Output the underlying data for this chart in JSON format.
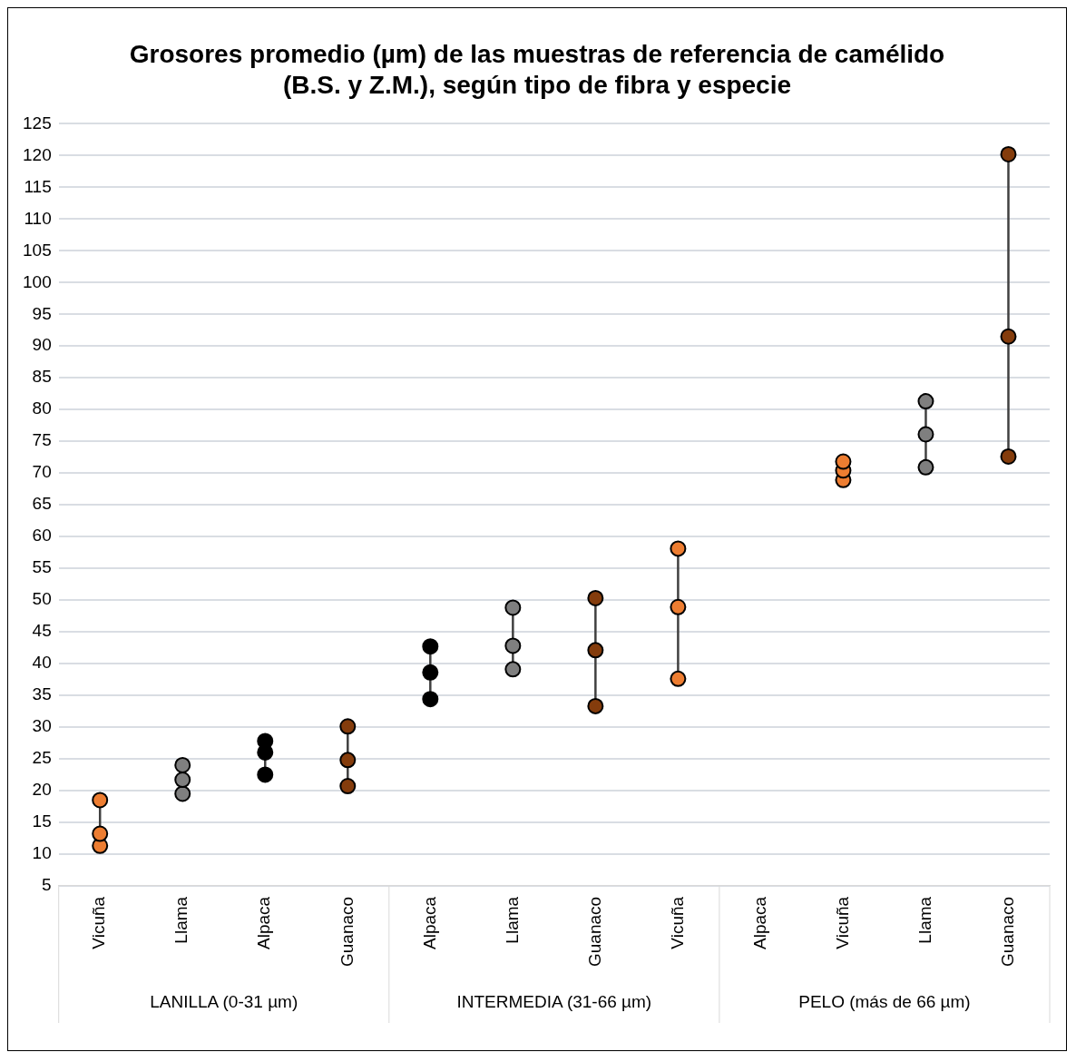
{
  "chart_data": {
    "type": "scatter",
    "title": "Grosores promedio (µm) de las muestras de referencia de camélido (B.S. y Z.M.), según tipo de fibra y especie",
    "categories": [
      "Vicuña",
      "Llama",
      "Alpaca",
      "Guanaco",
      "Alpaca",
      "Llama",
      "Guanaco",
      "Vicuña",
      "Alpaca",
      "Vicuña",
      "Llama",
      "Guanaco"
    ],
    "series": [
      {
        "values": [
          18.5,
          24,
          27.8,
          30.1,
          42.7,
          48.8,
          50.3,
          58.1,
          null,
          71.8,
          81.3,
          120.2
        ],
        "colors": [
          "#ed7d31",
          "#7f7f7f",
          "#000000",
          "#843c0c",
          "#000000",
          "#7f7f7f",
          "#843c0c",
          "#ed7d31",
          "#000000",
          "#ed7d31",
          "#7f7f7f",
          "#843c0c"
        ]
      },
      {
        "values": [
          13.2,
          21.7,
          26,
          24.8,
          38.6,
          42.8,
          42.1,
          48.9,
          null,
          70.4,
          76.1,
          91.5
        ],
        "colors": [
          "#ed7d31",
          "#7f7f7f",
          "#000000",
          "#843c0c",
          "#000000",
          "#7f7f7f",
          "#843c0c",
          "#ed7d31",
          "#000000",
          "#ed7d31",
          "#7f7f7f",
          "#843c0c"
        ]
      },
      {
        "values": [
          11.3,
          19.5,
          22.5,
          20.7,
          34.4,
          39.1,
          33.3,
          37.6,
          null,
          68.9,
          70.9,
          72.6
        ],
        "colors": [
          "#ed7d31",
          "#7f7f7f",
          "#000000",
          "#843c0c",
          "#000000",
          "#7f7f7f",
          "#843c0c",
          "#ed7d31",
          "#000000",
          "#ed7d31",
          "#7f7f7f",
          "#843c0c"
        ]
      }
    ],
    "ylim": [
      5,
      125
    ],
    "yticks": [
      5,
      10,
      15,
      20,
      25,
      30,
      35,
      40,
      45,
      50,
      55,
      60,
      65,
      70,
      75,
      80,
      85,
      90,
      95,
      100,
      105,
      110,
      115,
      120,
      125
    ],
    "grid": "y",
    "legend": false,
    "marker": "circle",
    "annotations": [
      "LANILLA (0-31 µm)",
      "INTERMEDIA (31-66 µm)",
      "PELO (más de 66 µm)"
    ]
  }
}
